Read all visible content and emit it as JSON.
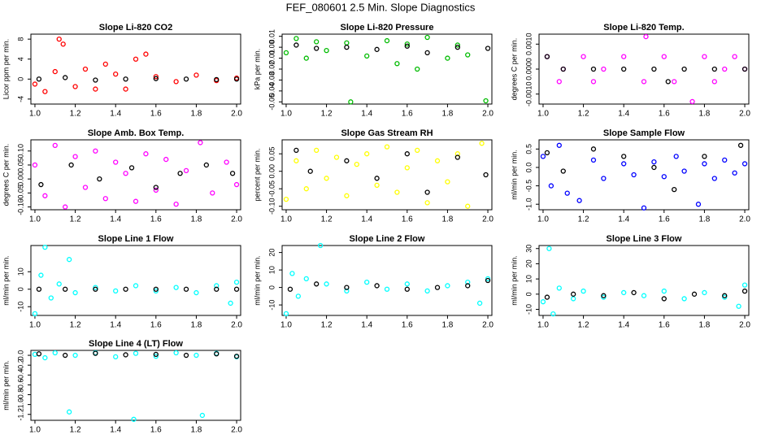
{
  "title": "FEF_080601  2.5 Min. Slope Diagnostics",
  "chart_data": [
    {
      "type": "scatter",
      "title": "Slope Li-820 CO2",
      "ylabel": "Licor ppm per min.",
      "xlim": [
        0.98,
        2.02
      ],
      "xticks": [
        {
          "value": 1,
          "label": "1.0"
        },
        1.2,
        1.4,
        1.6,
        1.8,
        {
          "value": 2,
          "label": "2.0"
        }
      ],
      "ylim": [
        -5,
        9
      ],
      "yticks": [
        -4,
        0,
        4,
        8
      ],
      "series": [
        {
          "color": "#ff0000",
          "x": [
            1.0,
            1.05,
            1.1,
            1.12,
            1.14,
            1.2,
            1.25,
            1.3,
            1.35,
            1.4,
            1.45,
            1.5,
            1.55,
            1.6,
            1.7,
            1.8,
            1.9,
            2.0
          ],
          "values": [
            -1,
            -2.5,
            1.5,
            8,
            7,
            -1.5,
            2,
            -2,
            3,
            1,
            -2,
            4,
            5,
            0.5,
            -0.5,
            0.8,
            -0.3,
            0.2
          ]
        },
        {
          "color": "#000000",
          "x": [
            1.02,
            1.15,
            1.3,
            1.45,
            1.6,
            1.75,
            1.9,
            2.0
          ],
          "values": [
            0,
            0.3,
            -0.2,
            0,
            0.1,
            0,
            -0.1,
            0
          ]
        }
      ]
    },
    {
      "type": "scatter",
      "title": "Slope Li-820 Pressure",
      "ylabel": "kPa per min.",
      "xlim": [
        0.98,
        2.02
      ],
      "xticks": [
        {
          "value": 1,
          "label": "1.0"
        },
        1.2,
        1.4,
        1.6,
        1.8,
        {
          "value": 2,
          "label": "2.0"
        }
      ],
      "ylim": [
        -0.052,
        0.012
      ],
      "yticks": [
        -0.05,
        -0.04,
        -0.03,
        -0.02,
        -0.01,
        {
          "value": 0,
          "label": "0.00"
        },
        0.01
      ],
      "series": [
        {
          "color": "#00bb00",
          "x": [
            1.0,
            1.05,
            1.1,
            1.15,
            1.2,
            1.3,
            1.32,
            1.4,
            1.5,
            1.55,
            1.6,
            1.65,
            1.7,
            1.8,
            1.85,
            1.9,
            1.99
          ],
          "values": [
            -0.005,
            0.008,
            -0.01,
            0.005,
            -0.003,
            0.004,
            -0.05,
            -0.008,
            0.006,
            -0.015,
            0.003,
            -0.02,
            0.009,
            -0.01,
            0.002,
            -0.007,
            -0.049
          ]
        },
        {
          "color": "#000000",
          "x": [
            1.05,
            1.15,
            1.3,
            1.45,
            1.6,
            1.7,
            1.85,
            2.0
          ],
          "values": [
            0.002,
            -0.001,
            0,
            -0.002,
            0.001,
            -0.005,
            0,
            -0.001
          ]
        }
      ]
    },
    {
      "type": "scatter",
      "title": "Slope Li-820 Temp.",
      "ylabel": "degrees C per min.",
      "xlim": [
        0.98,
        2.02
      ],
      "xticks": [
        {
          "value": 1,
          "label": "1.0"
        },
        1.2,
        1.4,
        1.6,
        1.8,
        {
          "value": 2,
          "label": "2.0"
        }
      ],
      "ylim": [
        -0.0014,
        0.0014
      ],
      "yticks": [
        {
          "value": -0.001,
          "label": "-0.0010"
        },
        {
          "value": 0,
          "label": "0.0000"
        },
        {
          "value": 0.001,
          "label": "0.0010"
        }
      ],
      "series": [
        {
          "color": "#ff00ff",
          "x": [
            1.02,
            1.08,
            1.1,
            1.2,
            1.25,
            1.3,
            1.4,
            1.5,
            1.51,
            1.6,
            1.65,
            1.74,
            1.8,
            1.85,
            1.9,
            1.95,
            2.0
          ],
          "values": [
            0.0005,
            -0.0005,
            0,
            0.0005,
            -0.0005,
            0,
            0.0005,
            -0.0005,
            0.0013,
            0.0005,
            -0.0005,
            -0.0013,
            0.0005,
            -0.0005,
            0,
            0.0005,
            0
          ]
        },
        {
          "color": "#000000",
          "x": [
            1.02,
            1.1,
            1.25,
            1.4,
            1.55,
            1.62,
            1.7,
            1.85,
            2.0
          ],
          "values": [
            0.0005,
            0,
            0,
            0,
            0,
            -0.0005,
            0,
            0,
            0
          ]
        }
      ]
    },
    {
      "type": "scatter",
      "title": "Slope Amb. Box Temp.",
      "ylabel": "degrees C per min.",
      "xlim": [
        0.98,
        2.02
      ],
      "xticks": [
        {
          "value": 1,
          "label": "1.0"
        },
        1.2,
        1.4,
        1.6,
        1.8,
        {
          "value": 2,
          "label": "2.0"
        }
      ],
      "ylim": [
        -0.11,
        0.14
      ],
      "yticks": [
        {
          "value": -0.1,
          "label": "-0.10"
        },
        -0.05,
        {
          "value": 0,
          "label": "0.00"
        },
        0.05,
        {
          "value": 0.1,
          "label": "0.10"
        }
      ],
      "series": [
        {
          "color": "#ff00ff",
          "x": [
            1.0,
            1.05,
            1.1,
            1.15,
            1.2,
            1.25,
            1.3,
            1.35,
            1.4,
            1.45,
            1.5,
            1.55,
            1.6,
            1.65,
            1.7,
            1.75,
            1.82,
            1.88,
            1.95,
            2.0
          ],
          "values": [
            0.05,
            -0.06,
            0.12,
            -0.1,
            0.08,
            -0.03,
            0.1,
            -0.07,
            0.06,
            0.02,
            -0.08,
            0.09,
            -0.04,
            0.07,
            -0.09,
            0.03,
            0.13,
            -0.05,
            0.06,
            -0.02
          ]
        },
        {
          "color": "#000000",
          "x": [
            1.03,
            1.18,
            1.32,
            1.48,
            1.6,
            1.72,
            1.85,
            1.98
          ],
          "values": [
            -0.02,
            0.05,
            0.0,
            0.04,
            -0.03,
            0.02,
            0.05,
            0.02
          ]
        }
      ]
    },
    {
      "type": "scatter",
      "title": "Slope Gas Stream RH",
      "ylabel": "percent per min.",
      "xlim": [
        0.98,
        2.02
      ],
      "xticks": [
        {
          "value": 1,
          "label": "1.0"
        },
        1.2,
        1.4,
        1.6,
        1.8,
        {
          "value": 2,
          "label": "2.0"
        }
      ],
      "ylim": [
        -0.11,
        0.09
      ],
      "yticks": [
        {
          "value": -0.1,
          "label": "-0.10"
        },
        -0.05,
        {
          "value": 0,
          "label": "0.00"
        },
        0.05
      ],
      "series": [
        {
          "color": "#ffff00",
          "x": [
            1.0,
            1.05,
            1.1,
            1.15,
            1.2,
            1.25,
            1.3,
            1.35,
            1.4,
            1.45,
            1.5,
            1.55,
            1.6,
            1.65,
            1.7,
            1.75,
            1.8,
            1.85,
            1.9,
            1.97
          ],
          "values": [
            -0.08,
            0.03,
            -0.05,
            0.06,
            -0.02,
            0.04,
            -0.07,
            0.02,
            0.05,
            -0.04,
            0.07,
            -0.06,
            0.01,
            0.06,
            -0.09,
            0.03,
            -0.03,
            0.05,
            -0.1,
            0.08
          ]
        },
        {
          "color": "#000000",
          "x": [
            1.05,
            1.12,
            1.3,
            1.45,
            1.6,
            1.7,
            1.85,
            1.99
          ],
          "values": [
            0.06,
            0.0,
            0.03,
            -0.02,
            0.05,
            -0.06,
            0.04,
            -0.01
          ]
        }
      ]
    },
    {
      "type": "scatter",
      "title": "Slope Sample Flow",
      "ylabel": "ml/min per min.",
      "xlim": [
        0.98,
        2.02
      ],
      "xticks": [
        {
          "value": 1,
          "label": "1.0"
        },
        1.2,
        1.4,
        1.6,
        1.8,
        {
          "value": 2,
          "label": "2.0"
        }
      ],
      "ylim": [
        -1.15,
        0.75
      ],
      "yticks": [
        {
          "value": -1,
          "label": "-1.0"
        },
        -0.5,
        {
          "value": 0,
          "label": "0.0"
        },
        0.5
      ],
      "series": [
        {
          "color": "#0000ff",
          "x": [
            1.0,
            1.04,
            1.08,
            1.12,
            1.18,
            1.25,
            1.3,
            1.4,
            1.45,
            1.5,
            1.55,
            1.6,
            1.66,
            1.7,
            1.77,
            1.8,
            1.85,
            1.9,
            1.95,
            2.0
          ],
          "values": [
            0.3,
            -0.5,
            0.6,
            -0.7,
            -0.9,
            0.2,
            -0.3,
            0.1,
            -0.2,
            -1.1,
            0.15,
            -0.25,
            0.3,
            -0.1,
            -1.0,
            0.1,
            -0.3,
            0.2,
            -0.15,
            0.1
          ]
        },
        {
          "color": "#000000",
          "x": [
            1.02,
            1.1,
            1.25,
            1.4,
            1.55,
            1.65,
            1.8,
            1.98
          ],
          "values": [
            0.4,
            -0.1,
            0.5,
            0.3,
            0.0,
            -0.6,
            0.3,
            0.6
          ]
        }
      ]
    },
    {
      "type": "scatter",
      "title": "Slope Line 1 Flow",
      "ylabel": "ml/min per min.",
      "xlim": [
        0.98,
        2.02
      ],
      "xticks": [
        {
          "value": 1,
          "label": "1.0"
        },
        1.2,
        1.4,
        1.6,
        1.8,
        {
          "value": 2,
          "label": "2.0"
        }
      ],
      "ylim": [
        -15,
        25
      ],
      "yticks": [
        -10,
        0,
        10
      ],
      "series": [
        {
          "color": "#00ffff",
          "x": [
            1.0,
            1.03,
            1.05,
            1.08,
            1.12,
            1.17,
            1.2,
            1.3,
            1.4,
            1.5,
            1.6,
            1.7,
            1.8,
            1.9,
            1.97,
            2.0
          ],
          "values": [
            -14,
            8,
            24,
            -5,
            3,
            17,
            -2,
            1,
            -1,
            2,
            -1,
            1,
            -2,
            2,
            -8,
            4
          ]
        },
        {
          "color": "#000000",
          "x": [
            1.02,
            1.15,
            1.3,
            1.45,
            1.6,
            1.75,
            1.9,
            2.0
          ],
          "values": [
            0,
            0,
            0,
            0,
            0,
            0,
            0,
            0
          ]
        }
      ]
    },
    {
      "type": "scatter",
      "title": "Slope Line 2 Flow",
      "ylabel": "ml/min per min.",
      "xlim": [
        0.98,
        2.02
      ],
      "xticks": [
        {
          "value": 1,
          "label": "1.0"
        },
        1.2,
        1.4,
        1.6,
        1.8,
        {
          "value": 2,
          "label": "2.0"
        }
      ],
      "ylim": [
        -16,
        24
      ],
      "yticks": [
        -10,
        0,
        10,
        20
      ],
      "series": [
        {
          "color": "#00ffff",
          "x": [
            1.0,
            1.03,
            1.06,
            1.1,
            1.17,
            1.2,
            1.3,
            1.4,
            1.5,
            1.6,
            1.7,
            1.8,
            1.9,
            1.96,
            2.0
          ],
          "values": [
            -15,
            8,
            -5,
            5,
            24,
            2,
            -2,
            3,
            -1,
            2,
            -2,
            1,
            3,
            -9,
            5
          ]
        },
        {
          "color": "#000000",
          "x": [
            1.02,
            1.15,
            1.3,
            1.45,
            1.6,
            1.75,
            1.9,
            2.0
          ],
          "values": [
            -1,
            2,
            0,
            1,
            -1,
            0,
            1,
            4
          ]
        }
      ]
    },
    {
      "type": "scatter",
      "title": "Slope Line 3 Flow",
      "ylabel": "ml/min per min.",
      "xlim": [
        0.98,
        2.02
      ],
      "xticks": [
        {
          "value": 1,
          "label": "1.0"
        },
        1.2,
        1.4,
        1.6,
        1.8,
        {
          "value": 2,
          "label": "2.0"
        }
      ],
      "ylim": [
        -14,
        32
      ],
      "yticks": [
        -10,
        0,
        10,
        20,
        30
      ],
      "series": [
        {
          "color": "#00ffff",
          "x": [
            1.0,
            1.03,
            1.05,
            1.08,
            1.15,
            1.2,
            1.3,
            1.4,
            1.5,
            1.6,
            1.7,
            1.8,
            1.9,
            1.97,
            2.0
          ],
          "values": [
            -5,
            30,
            -13,
            4,
            -3,
            2,
            -2,
            1,
            -1,
            2,
            -3,
            1,
            -2,
            -8,
            6
          ]
        },
        {
          "color": "#000000",
          "x": [
            1.02,
            1.15,
            1.3,
            1.45,
            1.6,
            1.75,
            1.9,
            2.0
          ],
          "values": [
            -2,
            0,
            -1,
            1,
            -3,
            0,
            -1,
            2
          ]
        }
      ]
    },
    {
      "type": "scatter",
      "title": "Slope Line 4 (LT) Flow",
      "ylabel": "ml/min per min.",
      "xlim": [
        0.98,
        2.02
      ],
      "xticks": [
        {
          "value": 1,
          "label": "1.0"
        },
        1.2,
        1.4,
        1.6,
        1.8,
        {
          "value": 2,
          "label": "2.0"
        }
      ],
      "ylim": [
        -1.32,
        0.1
      ],
      "yticks": [
        -1.2,
        {
          "value": -1,
          "label": "-1.0"
        },
        -0.8,
        -0.6,
        -0.4,
        -0.2,
        {
          "value": 0,
          "label": "0.0"
        }
      ],
      "series": [
        {
          "color": "#00ffff",
          "x": [
            1.0,
            1.05,
            1.1,
            1.17,
            1.2,
            1.3,
            1.4,
            1.49,
            1.5,
            1.6,
            1.7,
            1.8,
            1.83,
            1.9,
            2.0
          ],
          "values": [
            0.02,
            -0.05,
            0.05,
            -1.15,
            0.0,
            0.05,
            -0.03,
            -1.3,
            0.04,
            -0.02,
            0.05,
            0.0,
            -1.22,
            0.04,
            -0.03
          ]
        },
        {
          "color": "#000000",
          "x": [
            1.02,
            1.15,
            1.3,
            1.45,
            1.6,
            1.75,
            1.9,
            2.0
          ],
          "values": [
            0.03,
            0.0,
            0.04,
            0.01,
            0.02,
            0.0,
            0.03,
            -0.02
          ]
        }
      ]
    }
  ]
}
